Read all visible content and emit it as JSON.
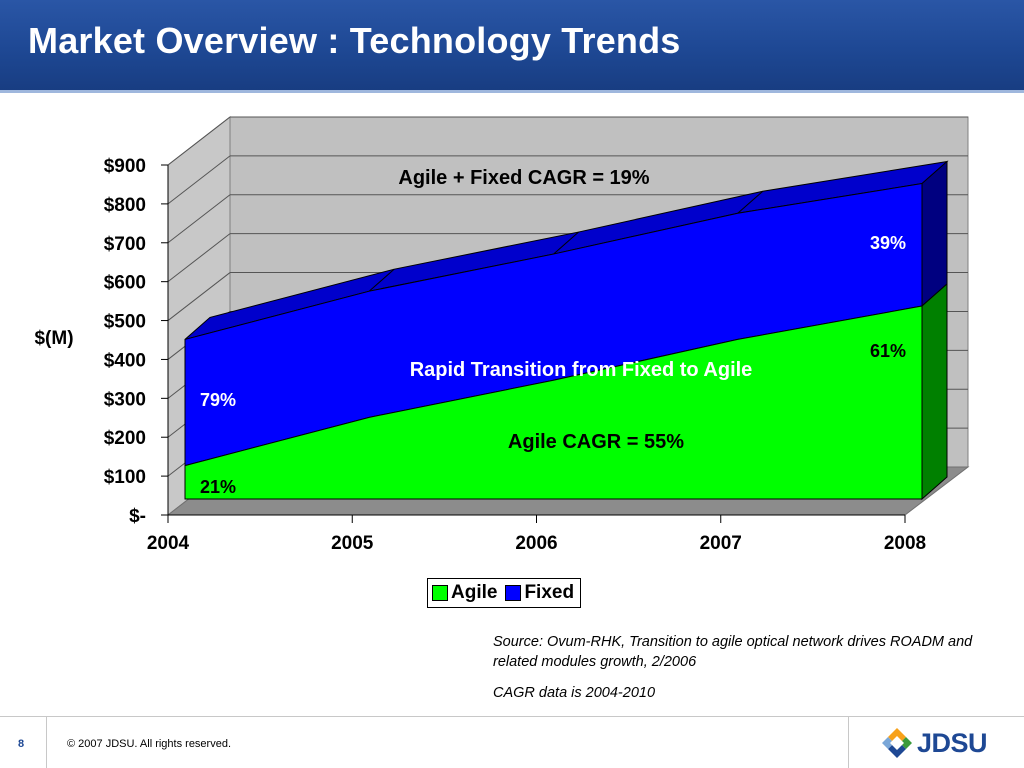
{
  "slide": {
    "title": "Market Overview : Technology Trends",
    "source_text": "Source: Ovum-RHK, Transition to agile optical network drives ROADM and related modules growth, 2/2006",
    "cagr_note": "CAGR data is 2004-2010",
    "page_number": "8",
    "copyright": "© 2007 JDSU. All rights reserved.",
    "logo_text": "JDSU"
  },
  "chart_data": {
    "type": "area",
    "stacked": true,
    "three_d": true,
    "ylabel": "$(M)",
    "xlabel": "",
    "x": [
      "2004",
      "2005",
      "2006",
      "2007",
      "2008"
    ],
    "ylim": [
      0,
      900
    ],
    "ytick_labels": [
      "$-",
      "$100",
      "$200",
      "$300",
      "$400",
      "$500",
      "$600",
      "$700",
      "$800",
      "$900"
    ],
    "series": [
      {
        "name": "Agile",
        "values": [
          90,
          220,
          320,
          430,
          520
        ],
        "color": "#00ff00"
      },
      {
        "name": "Fixed",
        "values": [
          340,
          340,
          340,
          340,
          330
        ],
        "color": "#0000ff"
      }
    ],
    "legend": "bottom-center",
    "annotations": {
      "total_cagr": "Agile + Fixed CAGR = 19%",
      "agile_cagr": "Agile CAGR = 55%",
      "transition": "Rapid Transition from Fixed to Agile",
      "fixed_2004": "79%",
      "agile_2004": "21%",
      "fixed_2008": "39%",
      "agile_2008": "61%"
    }
  },
  "colors": {
    "title_bar": "#1e4894",
    "agile": "#00ff00",
    "fixed": "#0000ff",
    "wall": "#c0c0c0"
  }
}
